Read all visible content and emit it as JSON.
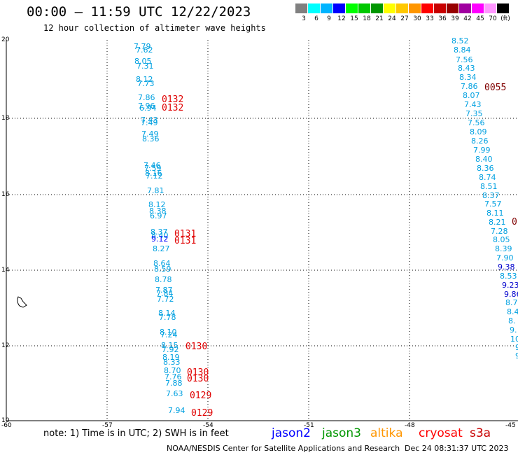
{
  "header": {
    "title": "00:00 – 11:59 UTC 12/22/2023",
    "subtitle": "12 hour collection of altimeter wave heights"
  },
  "legend": {
    "colors": [
      "#808080",
      "#00ffff",
      "#00b4ff",
      "#0000ff",
      "#00ff00",
      "#00c800",
      "#009600",
      "#ffff00",
      "#ffc800",
      "#ff9600",
      "#ff0000",
      "#c80000",
      "#960000",
      "#a000a0",
      "#ff00ff",
      "#ff96ff",
      "#000000"
    ],
    "labels": [
      "3",
      "6",
      "9",
      "12",
      "15",
      "18",
      "21",
      "24",
      "27",
      "30",
      "33",
      "36",
      "39",
      "42",
      "45",
      "70",
      "(ft)"
    ]
  },
  "axes": {
    "lat_labels": [
      "20",
      "18",
      "16",
      "14",
      "12",
      "10"
    ],
    "lon_labels": [
      "-60",
      "-57",
      "-54",
      "-51",
      "-48",
      "-45"
    ]
  },
  "tracks": {
    "left_values": [
      "7.79",
      "7.62",
      "8.05",
      "7.31",
      "8.12",
      "7.73",
      "7.86",
      "7.96",
      "6.94",
      "7.43",
      "7.49",
      "7.49",
      "8.36",
      "7.46",
      "7.59",
      "8.16",
      "7.12",
      "7.81",
      "8.12",
      "8.38",
      "6.97",
      "8.37",
      "8.40",
      "9.12",
      "8.27",
      "8.64",
      "8.59",
      "8.78",
      "7.87",
      "7.84",
      "7.72",
      "8.14",
      "7.78",
      "8.10",
      "7.24",
      "8.15",
      "7.92",
      "8.19",
      "8.33",
      "8.70",
      "7.76",
      "7.88",
      "7.63",
      "7.94"
    ],
    "right_values": [
      "8.52",
      "8.84",
      "7.56",
      "8.43",
      "8.34",
      "7.86",
      "8.07",
      "7.43",
      "7.35",
      "7.56",
      "8.09",
      "8.26",
      "7.99",
      "8.40",
      "8.36",
      "8.74",
      "8.51",
      "8.37",
      "7.57",
      "8.11",
      "8.21",
      "7.28",
      "8.05",
      "8.39",
      "7.90",
      "9.38",
      "8.53",
      "9.23",
      "9.86",
      "8.7",
      "8.4",
      "8.",
      "9.",
      "10",
      "9",
      "9"
    ],
    "times": [
      "0132",
      "0132",
      "0131",
      "0131",
      "0130",
      "0130",
      "0130",
      "0129",
      "0129",
      "0055",
      "0"
    ]
  },
  "footer": {
    "note": "note: 1) Time is in UTC; 2) SWH is in feet",
    "satellites": [
      {
        "name": "jason2",
        "color": "#0000ff"
      },
      {
        "name": "jason3",
        "color": "#009600"
      },
      {
        "name": "altika",
        "color": "#ff9600"
      },
      {
        "name": "cryosat",
        "color": "#ff0000"
      },
      {
        "name": "s3a",
        "color": "#c80000"
      }
    ],
    "credit": "NOAA/NESDIS Center for Satellite Applications and Research",
    "timestamp": "Dec 24 08:31:37 UTC 2023"
  }
}
